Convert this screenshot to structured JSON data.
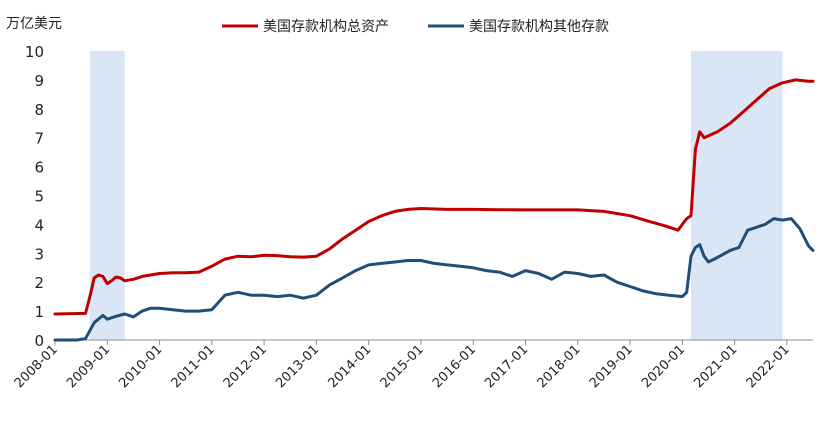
{
  "chart_data": {
    "type": "line",
    "ylabel": "万亿美元",
    "ylim": [
      0,
      10
    ],
    "y_ticks": [
      "0",
      "1",
      "2",
      "3",
      "4",
      "5",
      "6",
      "7",
      "8",
      "9",
      "10"
    ],
    "xlim": [
      "2008-01",
      "2022-07"
    ],
    "x_ticks": [
      "2008-01",
      "2009-01",
      "2010-01",
      "2011-01",
      "2012-01",
      "2013-01",
      "2014-01",
      "2015-01",
      "2016-01",
      "2017-01",
      "2018-01",
      "2019-01",
      "2020-01",
      "2021-01",
      "2022-01"
    ],
    "legend_position": "top-center",
    "grid": false,
    "shaded_periods": [
      {
        "start": "2008-09",
        "end": "2009-05"
      },
      {
        "start": "2020-03",
        "end": "2021-12"
      }
    ],
    "series": [
      {
        "name": "美国存款机构总资产",
        "color": "#c00000",
        "x": [
          "2008-01",
          "2008-08",
          "2008-09",
          "2008-10",
          "2008-11",
          "2008-12",
          "2009-01",
          "2009-02",
          "2009-03",
          "2009-04",
          "2009-05",
          "2009-07",
          "2009-09",
          "2009-11",
          "2010-01",
          "2010-04",
          "2010-07",
          "2010-10",
          "2011-01",
          "2011-04",
          "2011-07",
          "2011-10",
          "2012-01",
          "2012-04",
          "2012-07",
          "2012-10",
          "2013-01",
          "2013-04",
          "2013-07",
          "2013-10",
          "2014-01",
          "2014-04",
          "2014-07",
          "2014-10",
          "2015-01",
          "2015-07",
          "2016-01",
          "2016-07",
          "2017-01",
          "2017-07",
          "2018-01",
          "2018-07",
          "2019-01",
          "2019-05",
          "2019-09",
          "2019-12",
          "2020-01",
          "2020-02",
          "2020-03",
          "2020-04",
          "2020-05",
          "2020-06",
          "2020-09",
          "2020-12",
          "2021-03",
          "2021-06",
          "2021-09",
          "2021-12",
          "2022-03",
          "2022-06",
          "2022-07"
        ],
        "values": [
          0.9,
          0.92,
          1.5,
          2.15,
          2.25,
          2.2,
          1.95,
          2.05,
          2.18,
          2.15,
          2.05,
          2.1,
          2.2,
          2.25,
          2.3,
          2.33,
          2.33,
          2.35,
          2.55,
          2.8,
          2.9,
          2.88,
          2.93,
          2.92,
          2.88,
          2.87,
          2.9,
          3.15,
          3.5,
          3.8,
          4.1,
          4.3,
          4.45,
          4.52,
          4.55,
          4.52,
          4.52,
          4.51,
          4.5,
          4.5,
          4.5,
          4.45,
          4.3,
          4.12,
          3.95,
          3.8,
          4.0,
          4.2,
          4.3,
          6.6,
          7.2,
          7.0,
          7.2,
          7.5,
          7.9,
          8.3,
          8.7,
          8.9,
          9.0,
          8.95,
          8.95
        ]
      },
      {
        "name": "美国存款机构其他存款",
        "color": "#1f4e79",
        "x": [
          "2008-01",
          "2008-06",
          "2008-08",
          "2008-10",
          "2008-12",
          "2009-01",
          "2009-03",
          "2009-05",
          "2009-07",
          "2009-09",
          "2009-11",
          "2010-01",
          "2010-04",
          "2010-07",
          "2010-10",
          "2011-01",
          "2011-04",
          "2011-07",
          "2011-10",
          "2012-01",
          "2012-04",
          "2012-07",
          "2012-10",
          "2013-01",
          "2013-04",
          "2013-07",
          "2013-10",
          "2014-01",
          "2014-04",
          "2014-07",
          "2014-10",
          "2015-01",
          "2015-04",
          "2015-07",
          "2015-10",
          "2016-01",
          "2016-04",
          "2016-07",
          "2016-10",
          "2017-01",
          "2017-04",
          "2017-07",
          "2017-10",
          "2018-01",
          "2018-04",
          "2018-07",
          "2018-10",
          "2019-01",
          "2019-04",
          "2019-07",
          "2019-10",
          "2020-01",
          "2020-02",
          "2020-03",
          "2020-04",
          "2020-05",
          "2020-06",
          "2020-07",
          "2020-09",
          "2020-12",
          "2021-02",
          "2021-04",
          "2021-06",
          "2021-08",
          "2021-10",
          "2021-12",
          "2022-02",
          "2022-04",
          "2022-06",
          "2022-07"
        ],
        "values": [
          0.0,
          0.0,
          0.05,
          0.6,
          0.85,
          0.72,
          0.82,
          0.9,
          0.8,
          1.0,
          1.1,
          1.1,
          1.05,
          1.0,
          1.0,
          1.05,
          1.55,
          1.65,
          1.55,
          1.55,
          1.5,
          1.55,
          1.45,
          1.55,
          1.9,
          2.15,
          2.4,
          2.6,
          2.65,
          2.7,
          2.75,
          2.75,
          2.65,
          2.6,
          2.55,
          2.5,
          2.4,
          2.35,
          2.2,
          2.4,
          2.3,
          2.1,
          2.35,
          2.3,
          2.2,
          2.25,
          2.0,
          1.85,
          1.7,
          1.6,
          1.55,
          1.5,
          1.65,
          2.9,
          3.2,
          3.3,
          2.9,
          2.7,
          2.85,
          3.1,
          3.2,
          3.8,
          3.9,
          4.0,
          4.2,
          4.15,
          4.2,
          3.85,
          3.25,
          3.1
        ]
      }
    ]
  }
}
